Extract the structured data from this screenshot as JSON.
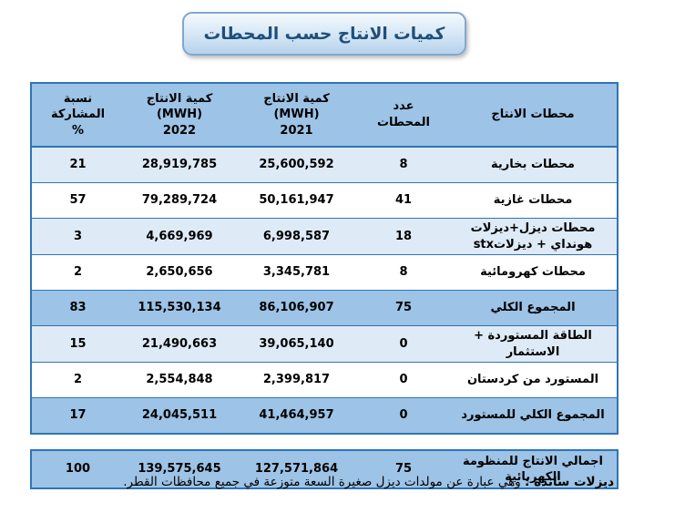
{
  "title": "كميات الانتاج حسب المحطات",
  "table": {
    "headers": [
      "محطات الانتاج",
      "عدد\nالمحطات",
      "كمية الانتاج\n(MWH)\n2021",
      "كمية الانتاج\n(MWH)\n2022",
      "نسبة المشاركة\n%"
    ],
    "rows": [
      {
        "name": "محطات بخارية",
        "count": "8",
        "y2021": "25,600,592",
        "y2022": "28,919,785",
        "share": "21",
        "style": "light",
        "separated": false
      },
      {
        "name": "محطات غازية",
        "count": "41",
        "y2021": "50,161,947",
        "y2022": "79,289,724",
        "share": "57",
        "style": "white",
        "separated": false
      },
      {
        "name": "محطات ديزل+ديزلات هونداي + ديزلاتstx",
        "count": "18",
        "y2021": "6,998,587",
        "y2022": "4,669,969",
        "share": "3",
        "style": "light",
        "separated": false
      },
      {
        "name": "محطات كهرومائية",
        "count": "8",
        "y2021": "3,345,781",
        "y2022": "2,650,656",
        "share": "2",
        "style": "white",
        "separated": false
      },
      {
        "name": "المجموع الكلي",
        "count": "75",
        "y2021": "86,106,907",
        "y2022": "115,530,134",
        "share": "83",
        "style": "total",
        "separated": false
      },
      {
        "name": "الطاقة المستوردة + الاستثمار",
        "count": "0",
        "y2021": "39,065,140",
        "y2022": "21,490,663",
        "share": "15",
        "style": "light",
        "separated": false
      },
      {
        "name": "المستورد من كردستان",
        "count": "0",
        "y2021": "2,399,817",
        "y2022": "2,554,848",
        "share": "2",
        "style": "white",
        "separated": false
      },
      {
        "name": "المجموع الكلي للمستورد",
        "count": "0",
        "y2021": "41,464,957",
        "y2022": "24,045,511",
        "share": "17",
        "style": "total",
        "separated": false
      },
      {
        "name": "اجمالي الانتاج للمنظومة الكهربائية",
        "count": "75",
        "y2021": "127,571,864",
        "y2022": "139,575,645",
        "share": "100",
        "style": "total",
        "separated": true
      }
    ]
  },
  "footnote": {
    "lead": "ديزلات ساندة :",
    "text": " وهي عبارة عن مولدات ديزل صغيرة السعة متوزعة في جميع محافظات القطر."
  },
  "colors": {
    "header_bg": "#9DC3E6",
    "row_light": "#DEEAF6",
    "row_white": "#FFFFFF",
    "total_bg": "#9DC3E6",
    "border": "#2E75B6",
    "title_text": "#1F4E79"
  }
}
